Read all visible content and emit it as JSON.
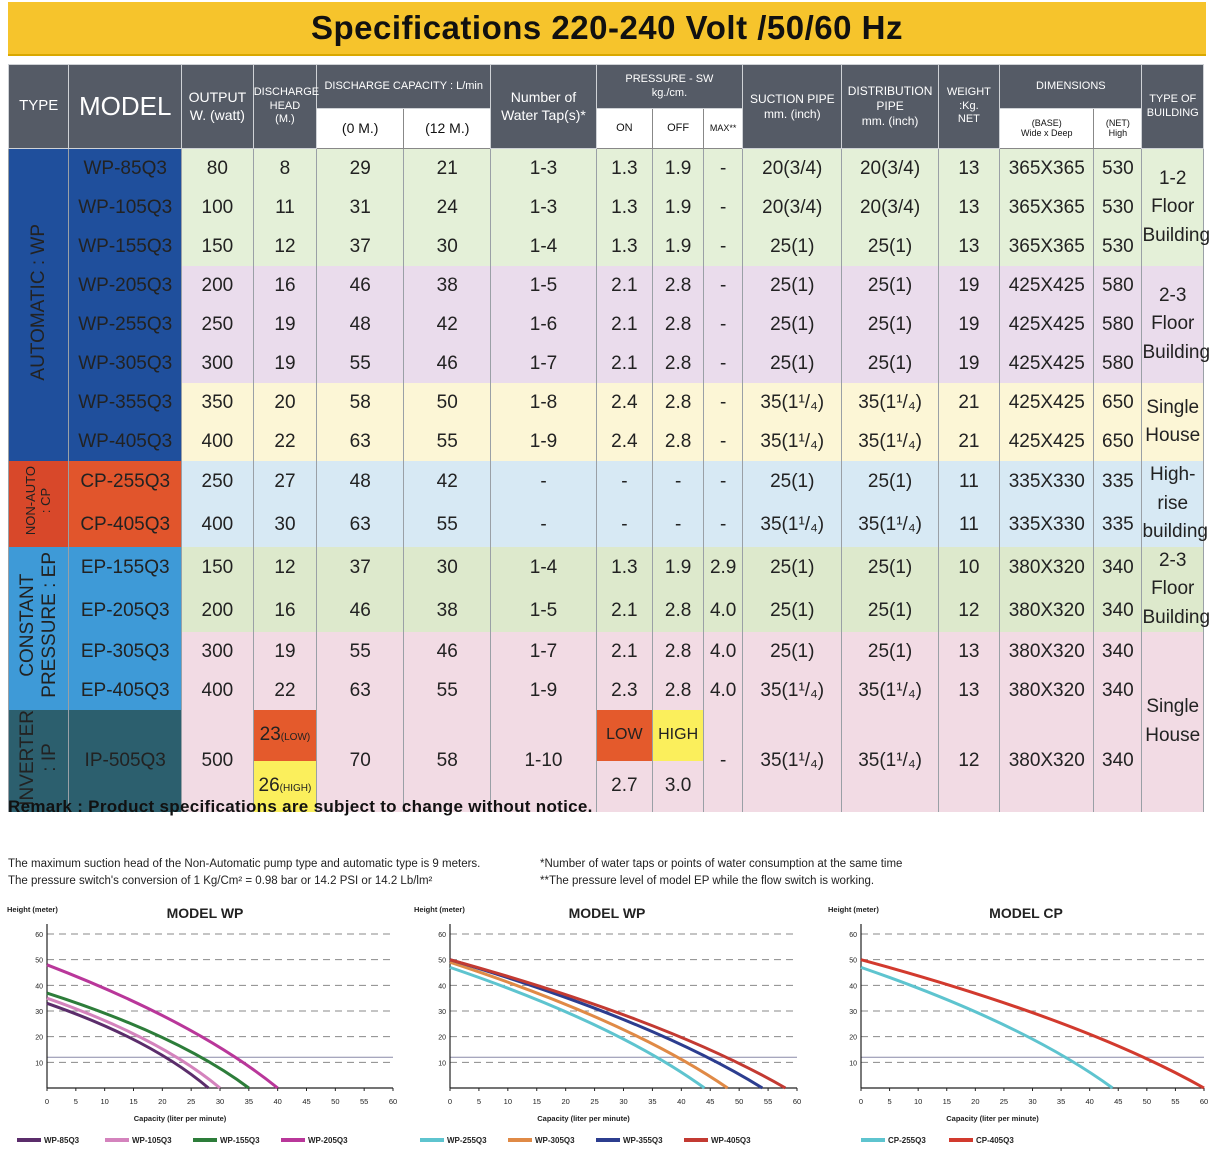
{
  "banner": {
    "title": "Specifications 220-240 Volt /50/60 Hz"
  },
  "headers": {
    "type": "TYPE",
    "model": "MODEL",
    "output": "OUTPUT\nW. (watt)",
    "head": "DISCHARGE\nHEAD\n(M.)",
    "capacity": "DISCHARGE CAPACITY : L/min",
    "cap0": "(0 M.)",
    "cap12": "(12 M.)",
    "taps": "Number of\nWater Tap(s)*",
    "pressure": "PRESSURE - SW\nkg./cm.",
    "on": "ON",
    "off": "OFF",
    "max": "MAX**",
    "suction": "SUCTION PIPE\nmm. (inch)",
    "distribution": "DISTRIBUTION\nPIPE\nmm. (inch)",
    "weight": "WEIGHT :Kg.\nNET",
    "dimensions": "DIMENSIONS",
    "base": "(BASE)\nWide x Deep",
    "high": "(NET)\nHigh",
    "building": "TYPE OF\nBUILDING"
  },
  "types": {
    "wp": "AUTOMATIC : WP",
    "cp": "NON-AUTO\n: CP",
    "ep": "CONSTANT\nPRESSURE : EP",
    "ip": "INVERTER\n: IP"
  },
  "buildings": {
    "b1": "1-2\nFloor\nBuilding",
    "b2": "2-3\nFloor\nBuilding",
    "b3": "Single\nHouse",
    "b4": "High-rise\nbuilding",
    "b5": "2-3\nFloor\nBuilding",
    "b6": "Single\nHouse"
  },
  "rows": [
    {
      "model": "WP-85Q3",
      "output": "80",
      "head": "8",
      "c0": "29",
      "c12": "21",
      "taps": "1-3",
      "on": "1.3",
      "off": "1.9",
      "max": "-",
      "suction": "20(3/4)",
      "dist": "20(3/4)",
      "weight": "13",
      "base": "365X365",
      "high": "530"
    },
    {
      "model": "WP-105Q3",
      "output": "100",
      "head": "11",
      "c0": "31",
      "c12": "24",
      "taps": "1-3",
      "on": "1.3",
      "off": "1.9",
      "max": "-",
      "suction": "20(3/4)",
      "dist": "20(3/4)",
      "weight": "13",
      "base": "365X365",
      "high": "530"
    },
    {
      "model": "WP-155Q3",
      "output": "150",
      "head": "12",
      "c0": "37",
      "c12": "30",
      "taps": "1-4",
      "on": "1.3",
      "off": "1.9",
      "max": "-",
      "suction": "25(1)",
      "dist": "25(1)",
      "weight": "13",
      "base": "365X365",
      "high": "530"
    },
    {
      "model": "WP-205Q3",
      "output": "200",
      "head": "16",
      "c0": "46",
      "c12": "38",
      "taps": "1-5",
      "on": "2.1",
      "off": "2.8",
      "max": "-",
      "suction": "25(1)",
      "dist": "25(1)",
      "weight": "19",
      "base": "425X425",
      "high": "580"
    },
    {
      "model": "WP-255Q3",
      "output": "250",
      "head": "19",
      "c0": "48",
      "c12": "42",
      "taps": "1-6",
      "on": "2.1",
      "off": "2.8",
      "max": "-",
      "suction": "25(1)",
      "dist": "25(1)",
      "weight": "19",
      "base": "425X425",
      "high": "580"
    },
    {
      "model": "WP-305Q3",
      "output": "300",
      "head": "19",
      "c0": "55",
      "c12": "46",
      "taps": "1-7",
      "on": "2.1",
      "off": "2.8",
      "max": "-",
      "suction": "25(1)",
      "dist": "25(1)",
      "weight": "19",
      "base": "425X425",
      "high": "580"
    },
    {
      "model": "WP-355Q3",
      "output": "350",
      "head": "20",
      "c0": "58",
      "c12": "50",
      "taps": "1-8",
      "on": "2.4",
      "off": "2.8",
      "max": "-",
      "suction": "35(1¹/₄)",
      "dist": "35(1¹/₄)",
      "weight": "21",
      "base": "425X425",
      "high": "650"
    },
    {
      "model": "WP-405Q3",
      "output": "400",
      "head": "22",
      "c0": "63",
      "c12": "55",
      "taps": "1-9",
      "on": "2.4",
      "off": "2.8",
      "max": "-",
      "suction": "35(1¹/₄)",
      "dist": "35(1¹/₄)",
      "weight": "21",
      "base": "425X425",
      "high": "650"
    },
    {
      "model": "CP-255Q3",
      "output": "250",
      "head": "27",
      "c0": "48",
      "c12": "42",
      "taps": "-",
      "on": "-",
      "off": "-",
      "max": "-",
      "suction": "25(1)",
      "dist": "25(1)",
      "weight": "11",
      "base": "335X330",
      "high": "335"
    },
    {
      "model": "CP-405Q3",
      "output": "400",
      "head": "30",
      "c0": "63",
      "c12": "55",
      "taps": "-",
      "on": "-",
      "off": "-",
      "max": "-",
      "suction": "35(1¹/₄)",
      "dist": "35(1¹/₄)",
      "weight": "11",
      "base": "335X330",
      "high": "335"
    },
    {
      "model": "EP-155Q3",
      "output": "150",
      "head": "12",
      "c0": "37",
      "c12": "30",
      "taps": "1-4",
      "on": "1.3",
      "off": "1.9",
      "max": "2.9",
      "suction": "25(1)",
      "dist": "25(1)",
      "weight": "10",
      "base": "380X320",
      "high": "340"
    },
    {
      "model": "EP-205Q3",
      "output": "200",
      "head": "16",
      "c0": "46",
      "c12": "38",
      "taps": "1-5",
      "on": "2.1",
      "off": "2.8",
      "max": "4.0",
      "suction": "25(1)",
      "dist": "25(1)",
      "weight": "12",
      "base": "380X320",
      "high": "340"
    },
    {
      "model": "EP-305Q3",
      "output": "300",
      "head": "19",
      "c0": "55",
      "c12": "46",
      "taps": "1-7",
      "on": "2.1",
      "off": "2.8",
      "max": "4.0",
      "suction": "25(1)",
      "dist": "25(1)",
      "weight": "13",
      "base": "380X320",
      "high": "340"
    },
    {
      "model": "EP-405Q3",
      "output": "400",
      "head": "22",
      "c0": "63",
      "c12": "55",
      "taps": "1-9",
      "on": "2.3",
      "off": "2.8",
      "max": "4.0",
      "suction": "35(1¹/₄)",
      "dist": "35(1¹/₄)",
      "weight": "13",
      "base": "380X320",
      "high": "340"
    }
  ],
  "inverter": {
    "model": "IP-505Q3",
    "output": "500",
    "head_low": "23",
    "head_low_tag": "(LOW)",
    "head_high": "26",
    "head_high_tag": "(HIGH)",
    "c0": "70",
    "c12": "58",
    "taps": "1-10",
    "low_label": "LOW",
    "high_label": "HIGH",
    "on": "2.7",
    "off": "3.0",
    "max": "-",
    "suction": "35(1¹/₄)",
    "dist": "35(1¹/₄)",
    "weight": "12",
    "base": "380X320",
    "high": "340"
  },
  "remark": "Remark : Product specifications are subject to change without notice.",
  "notes": {
    "left1": "The maximum suction head of the Non-Automatic pump type and automatic type is 9 meters.",
    "left2": "The pressure switch's conversion of 1 Kg/Cm² = 0.98 bar or 14.2 PSI or 14.2 Lb/lm²",
    "right1": "*Number of water taps or points of water consumption at the same time",
    "right2": "**The pressure level of model EP while the flow switch is working."
  },
  "chart_data": [
    {
      "type": "line",
      "title": "MODEL WP",
      "xlabel": "Capacity (liter per minute)",
      "ylabel": "Height (meter)",
      "xlim": [
        0,
        60
      ],
      "ylim": [
        0,
        60
      ],
      "xticks": [
        "0",
        "5",
        "10",
        "15",
        "20",
        "25",
        "30",
        "35",
        "40",
        "45",
        "50",
        "55",
        "60"
      ],
      "yticks": [
        "10",
        "20",
        "30",
        "40",
        "50",
        "60"
      ],
      "series": [
        {
          "name": "WP-85Q3",
          "color": "#5b2d6b",
          "x": [
            0,
            28
          ],
          "y": [
            33,
            0
          ]
        },
        {
          "name": "WP-105Q3",
          "color": "#d483bd",
          "x": [
            0,
            30
          ],
          "y": [
            35,
            0
          ]
        },
        {
          "name": "WP-155Q3",
          "color": "#2d7d3a",
          "x": [
            0,
            35
          ],
          "y": [
            37,
            0
          ]
        },
        {
          "name": "WP-205Q3",
          "color": "#b9379a",
          "x": [
            0,
            40
          ],
          "y": [
            48,
            0
          ]
        }
      ]
    },
    {
      "type": "line",
      "title": "MODEL WP",
      "xlabel": "Capacity (liter per minute)",
      "ylabel": "Height (meter)",
      "xlim": [
        0,
        60
      ],
      "ylim": [
        0,
        60
      ],
      "xticks": [
        "0",
        "5",
        "10",
        "15",
        "20",
        "25",
        "30",
        "35",
        "40",
        "45",
        "50",
        "55",
        "60"
      ],
      "yticks": [
        "10",
        "20",
        "30",
        "40",
        "50",
        "60"
      ],
      "series": [
        {
          "name": "WP-255Q3",
          "color": "#5ec4cf",
          "x": [
            0,
            44
          ],
          "y": [
            47,
            0
          ]
        },
        {
          "name": "WP-305Q3",
          "color": "#e08a46",
          "x": [
            0,
            48
          ],
          "y": [
            49,
            0
          ]
        },
        {
          "name": "WP-355Q3",
          "color": "#2c3d8f",
          "x": [
            0,
            54
          ],
          "y": [
            50,
            0
          ]
        },
        {
          "name": "WP-405Q3",
          "color": "#c33a32",
          "x": [
            0,
            58
          ],
          "y": [
            50,
            0
          ]
        }
      ]
    },
    {
      "type": "line",
      "title": "MODEL CP",
      "xlabel": "Capacity (liter per minute)",
      "ylabel": "Height (meter)",
      "xlim": [
        0,
        60
      ],
      "ylim": [
        0,
        60
      ],
      "xticks": [
        "0",
        "5",
        "10",
        "15",
        "20",
        "25",
        "30",
        "35",
        "40",
        "45",
        "50",
        "55",
        "60"
      ],
      "yticks": [
        "10",
        "20",
        "30",
        "40",
        "50",
        "60"
      ],
      "series": [
        {
          "name": "CP-255Q3",
          "color": "#5ec4cf",
          "x": [
            0,
            44
          ],
          "y": [
            47,
            0
          ]
        },
        {
          "name": "CP-405Q3",
          "color": "#d23a2e",
          "x": [
            0,
            60
          ],
          "y": [
            50,
            0
          ]
        }
      ]
    }
  ]
}
